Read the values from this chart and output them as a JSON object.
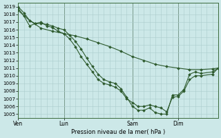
{
  "background_color": "#cce8e8",
  "grid_color": "#aacccc",
  "line_color": "#2d5a2d",
  "marker_color": "#2d5a2d",
  "xlabel": "Pression niveau de la mer( hPa )",
  "ylim": [
    1004.5,
    1019.5
  ],
  "yticks": [
    1005,
    1006,
    1007,
    1008,
    1009,
    1010,
    1011,
    1012,
    1013,
    1014,
    1015,
    1016,
    1017,
    1018,
    1019
  ],
  "xtick_labels": [
    "Ven",
    "Lun",
    "Sam",
    "Dim"
  ],
  "xtick_positions": [
    0,
    48,
    120,
    168
  ],
  "xlim": [
    0,
    210
  ],
  "series_long_x": [
    0,
    12,
    24,
    36,
    48,
    60,
    72,
    84,
    96,
    108,
    120,
    132,
    144,
    156,
    168,
    180,
    192,
    204,
    210
  ],
  "series_long_y": [
    1018.5,
    1017.2,
    1016.2,
    1015.8,
    1015.5,
    1015.2,
    1014.8,
    1014.3,
    1013.8,
    1013.2,
    1012.5,
    1012.0,
    1011.5,
    1011.2,
    1011.0,
    1010.8,
    1010.8,
    1010.9,
    1011.0
  ],
  "series_steep1_x": [
    0,
    6,
    12,
    18,
    24,
    30,
    36,
    42,
    48,
    54,
    60,
    66,
    72,
    78,
    84,
    90,
    96,
    102,
    108,
    114,
    120,
    126,
    132,
    138,
    144,
    150,
    156,
    162,
    168,
    174,
    180,
    186,
    192,
    204,
    210
  ],
  "series_steep1_y": [
    1019.0,
    1018.2,
    1017.2,
    1016.8,
    1016.8,
    1016.7,
    1016.5,
    1016.2,
    1016.0,
    1015.3,
    1014.5,
    1013.5,
    1012.3,
    1011.2,
    1010.2,
    1009.5,
    1009.2,
    1009.0,
    1008.3,
    1007.2,
    1006.0,
    1005.5,
    1005.5,
    1005.8,
    1005.2,
    1005.0,
    1005.0,
    1007.5,
    1007.5,
    1008.2,
    1010.2,
    1010.5,
    1010.3,
    1010.5,
    1011.0
  ],
  "series_steep2_x": [
    0,
    6,
    12,
    18,
    24,
    30,
    36,
    42,
    48,
    54,
    60,
    66,
    72,
    78,
    84,
    90,
    96,
    102,
    108,
    114,
    120,
    126,
    132,
    138,
    144,
    150,
    156,
    162,
    168,
    174,
    180,
    186,
    192,
    204,
    210
  ],
  "series_steep2_y": [
    1018.8,
    1017.8,
    1016.5,
    1016.8,
    1017.0,
    1016.5,
    1016.3,
    1015.8,
    1015.5,
    1014.8,
    1013.8,
    1012.5,
    1011.5,
    1010.5,
    1009.5,
    1009.0,
    1008.8,
    1008.5,
    1008.0,
    1007.0,
    1006.5,
    1006.0,
    1006.0,
    1006.2,
    1006.0,
    1005.8,
    1005.3,
    1007.2,
    1007.3,
    1008.0,
    1009.5,
    1010.0,
    1010.0,
    1010.2,
    1011.0
  ]
}
